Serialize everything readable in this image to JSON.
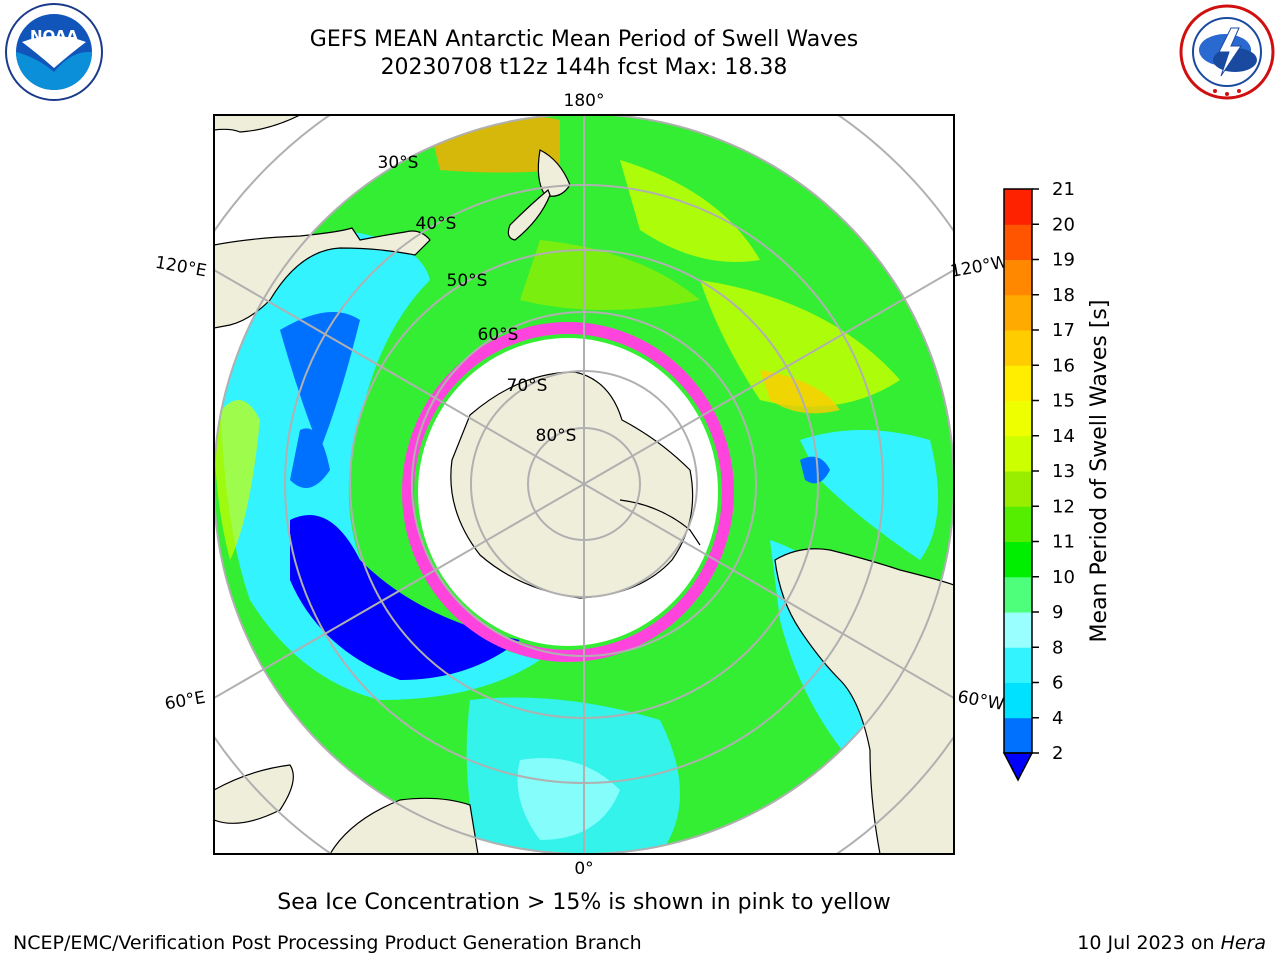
{
  "header": {
    "title_line1": "GEFS MEAN Antarctic Mean Period of Swell Waves",
    "title_line2": "20230708 t12z 144h fcst   Max: 18.38"
  },
  "logos": {
    "noaa": {
      "text": "NOAA",
      "icon": "noaa-logo-icon"
    },
    "nws": {
      "icon": "nws-logo-icon"
    }
  },
  "map": {
    "projection": "south-polar-stereographic",
    "longitude_labels": [
      "180°",
      "120°E",
      "120°W",
      "60°E",
      "60°W",
      "0°"
    ],
    "latitude_labels": [
      "30°S",
      "40°S",
      "50°S",
      "60°S",
      "70°S",
      "80°S"
    ]
  },
  "colorbar": {
    "label": "Mean Period of Swell Waves [s]",
    "ticks": [
      "2",
      "4",
      "6",
      "8",
      "9",
      "10",
      "11",
      "12",
      "13",
      "14",
      "15",
      "16",
      "17",
      "18",
      "19",
      "20",
      "21"
    ],
    "colors": [
      "#0070ff",
      "#00e1ff",
      "#33f3ff",
      "#99ffff",
      "#4dff7a",
      "#00ee00",
      "#55ee00",
      "#99ee00",
      "#ccff00",
      "#eeff00",
      "#ffee00",
      "#ffcc00",
      "#ffaa00",
      "#ff8800",
      "#ff5500",
      "#ff2200"
    ],
    "under_color": "#0000ff"
  },
  "captions": {
    "sea_ice": "Sea Ice Concentration > 15% is shown in pink to yellow"
  },
  "footer": {
    "left": "NCEP/EMC/Verification Post Processing Product Generation Branch",
    "right_prefix": "10 Jul 2023 on ",
    "right_italic": "Hera"
  }
}
